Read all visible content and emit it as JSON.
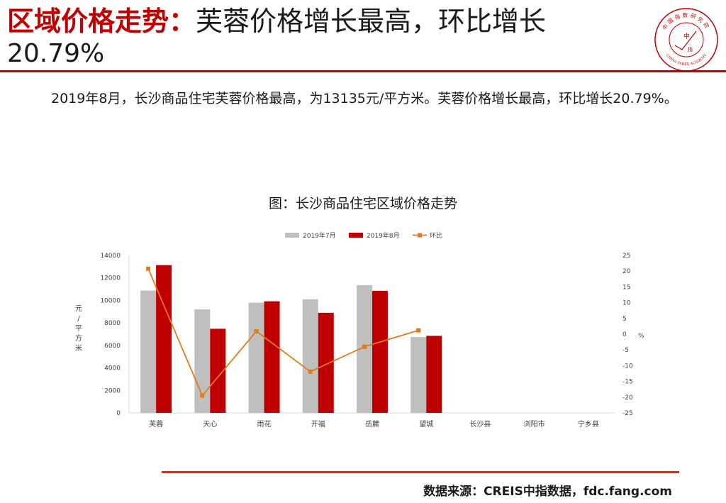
{
  "header": {
    "title_highlight": "区域价格走势：",
    "title_rest": "芙蓉价格增长最高，环比增长",
    "title_line2": "20.79%"
  },
  "logo": {
    "text_top": "中国指数研究院",
    "text_bottom": "CHINA INDEX ACADEMY",
    "center_glyph_1": "中",
    "center_glyph_2": "指",
    "color": "#c00000"
  },
  "body": {
    "paragraph": "2019年8月，长沙商品住宅芙蓉价格最高，为13135元/平方米。芙蓉价格增长最高，环比增长20.79%。"
  },
  "chart_title": "图：长沙商品住宅区域价格走势",
  "chart_data": {
    "type": "bar",
    "categories": [
      "芙蓉",
      "天心",
      "雨花",
      "开福",
      "岳麓",
      "望城",
      "长沙县",
      "浏阳市",
      "宁乡县"
    ],
    "series": [
      {
        "name": "2019年7月",
        "type": "bar",
        "axis": "left",
        "color": "#bfbfbf",
        "values": [
          10870,
          9200,
          9800,
          10100,
          11350,
          6750,
          null,
          null,
          null
        ]
      },
      {
        "name": "2019年8月",
        "type": "bar",
        "axis": "left",
        "color": "#c00000",
        "values": [
          13135,
          7480,
          9920,
          8900,
          10850,
          6850,
          null,
          null,
          null
        ]
      },
      {
        "name": "环比",
        "type": "line",
        "axis": "right",
        "color": "#e07b1a",
        "values": [
          20.79,
          -19.5,
          0.9,
          -11.9,
          -4.0,
          1.2,
          null,
          null,
          null
        ]
      }
    ],
    "ylabel": "元/平方米",
    "ylabel_chars": [
      "元",
      "/",
      "平",
      "方",
      "米"
    ],
    "ylim": [
      0,
      14000
    ],
    "yticks": [
      0,
      2000,
      4000,
      6000,
      8000,
      10000,
      12000,
      14000
    ],
    "y2label": "%",
    "y2lim": [
      -25,
      25
    ],
    "y2ticks": [
      -25,
      -20,
      -15,
      -10,
      -5,
      0,
      5,
      10,
      15,
      20,
      25
    ],
    "legend_position": "top",
    "grid": false
  },
  "footer": {
    "source": "数据来源：CREIS中指数据，fdc.fang.com"
  }
}
